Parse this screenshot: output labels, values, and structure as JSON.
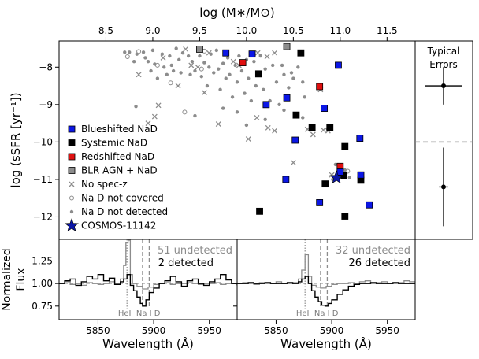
{
  "chart_data": [
    {
      "type": "scatter",
      "title": "",
      "top_axis_label": "log (M∗/M⊙)",
      "ylabel": "log (sSFR [yr⁻¹])",
      "xlim": [
        8.0,
        11.8
      ],
      "ylim": [
        -12.6,
        -7.3
      ],
      "x_ticks": [
        8.5,
        9.0,
        9.5,
        10.0,
        10.5,
        11.0,
        11.5
      ],
      "x_tick_labels": [
        "8.5",
        "9.0",
        "9.5",
        "10.0",
        "10.5",
        "11.0",
        "11.5"
      ],
      "y_ticks": [
        -8,
        -9,
        -10,
        -11,
        -12
      ],
      "y_tick_labels": [
        "−8",
        "−9",
        "−10",
        "−11",
        "−12"
      ],
      "legend": [
        {
          "label": "Blueshifted NaD",
          "marker": "square",
          "color": "#0b16e6"
        },
        {
          "label": "Systemic NaD",
          "marker": "square",
          "color": "#000000"
        },
        {
          "label": "Redshifted NaD",
          "marker": "square",
          "color": "#e01010"
        },
        {
          "label": "BLR AGN + NaD",
          "marker": "square",
          "color": "#8c8c8c"
        },
        {
          "label": "No spec-z",
          "marker": "x",
          "color": "#8c8c8c"
        },
        {
          "label": "Na D not covered",
          "marker": "open-circle",
          "color": "#8c8c8c"
        },
        {
          "label": "Na D not detected",
          "marker": "dot",
          "color": "#8c8c8c"
        },
        {
          "label": "COSMOS-11142",
          "marker": "star",
          "color": "#0b16a8"
        }
      ],
      "series": [
        {
          "name": "Blueshifted NaD",
          "points": [
            [
              9.78,
              -7.62
            ],
            [
              10.06,
              -7.65
            ],
            [
              10.98,
              -7.95
            ],
            [
              10.43,
              -8.82
            ],
            [
              10.21,
              -9.0
            ],
            [
              10.83,
              -9.1
            ],
            [
              10.52,
              -9.95
            ],
            [
              11.21,
              -9.9
            ],
            [
              10.42,
              -11.0
            ],
            [
              11.0,
              -10.8
            ],
            [
              10.78,
              -11.62
            ],
            [
              11.22,
              -10.88
            ],
            [
              11.31,
              -11.68
            ]
          ]
        },
        {
          "name": "Systemic NaD",
          "points": [
            [
              10.58,
              -7.62
            ],
            [
              10.13,
              -8.18
            ],
            [
              10.53,
              -9.28
            ],
            [
              10.7,
              -9.62
            ],
            [
              10.89,
              -9.62
            ],
            [
              11.05,
              -10.12
            ],
            [
              10.84,
              -11.12
            ],
            [
              11.04,
              -10.9
            ],
            [
              11.22,
              -11.02
            ],
            [
              11.05,
              -11.98
            ],
            [
              10.14,
              -11.85
            ]
          ]
        },
        {
          "name": "Redshifted NaD",
          "points": [
            [
              9.96,
              -7.88
            ],
            [
              10.78,
              -8.52
            ],
            [
              11.0,
              -10.65
            ]
          ]
        },
        {
          "name": "BLR AGN + NaD",
          "points": [
            [
              9.5,
              -7.52
            ],
            [
              10.43,
              -7.45
            ]
          ]
        },
        {
          "name": "No spec-z",
          "points": [
            [
              8.85,
              -8.2
            ],
            [
              9.11,
              -7.75
            ],
            [
              9.35,
              -7.52
            ],
            [
              9.41,
              -7.95
            ],
            [
              9.48,
              -8.0
            ],
            [
              9.6,
              -7.62
            ],
            [
              9.86,
              -7.85
            ],
            [
              9.92,
              -7.95
            ],
            [
              10.12,
              -7.62
            ],
            [
              10.22,
              -7.72
            ],
            [
              10.3,
              -7.62
            ],
            [
              9.27,
              -8.5
            ],
            [
              9.06,
              -9.02
            ],
            [
              9.55,
              -8.68
            ],
            [
              9.02,
              -9.32
            ],
            [
              8.95,
              -9.5
            ],
            [
              9.7,
              -9.52
            ],
            [
              10.11,
              -9.35
            ],
            [
              10.23,
              -9.62
            ],
            [
              10.3,
              -9.7
            ],
            [
              10.02,
              -9.92
            ],
            [
              10.71,
              -9.8
            ],
            [
              10.82,
              -9.68
            ],
            [
              10.79,
              -8.6
            ],
            [
              10.65,
              -9.66
            ],
            [
              10.87,
              -9.7
            ],
            [
              10.5,
              -10.55
            ],
            [
              11.02,
              -10.88
            ],
            [
              10.91,
              -10.88
            ]
          ]
        },
        {
          "name": "Na D not covered",
          "points": [
            [
              8.73,
              -7.72
            ],
            [
              8.85,
              -7.58
            ],
            [
              9.52,
              -8.05
            ],
            [
              9.05,
              -7.95
            ],
            [
              9.55,
              -7.57
            ],
            [
              9.19,
              -8.42
            ],
            [
              9.34,
              -9.2
            ],
            [
              11.08,
              -10.78
            ]
          ]
        },
        {
          "name": "Na D not detected",
          "points": [
            [
              8.7,
              -7.6
            ],
            [
              8.75,
              -7.6
            ],
            [
              8.8,
              -7.85
            ],
            [
              8.83,
              -7.65
            ],
            [
              8.9,
              -7.6
            ],
            [
              8.92,
              -7.75
            ],
            [
              8.95,
              -7.85
            ],
            [
              8.98,
              -8.1
            ],
            [
              9.0,
              -7.55
            ],
            [
              9.02,
              -7.92
            ],
            [
              9.05,
              -8.3
            ],
            [
              9.1,
              -7.65
            ],
            [
              9.12,
              -8.0
            ],
            [
              9.15,
              -8.2
            ],
            [
              9.18,
              -7.7
            ],
            [
              9.2,
              -7.95
            ],
            [
              9.22,
              -8.1
            ],
            [
              9.25,
              -7.5
            ],
            [
              9.28,
              -7.8
            ],
            [
              9.3,
              -8.15
            ],
            [
              9.32,
              -7.62
            ],
            [
              9.38,
              -7.7
            ],
            [
              9.4,
              -8.2
            ],
            [
              9.42,
              -7.85
            ],
            [
              9.45,
              -8.1
            ],
            [
              9.5,
              -7.7
            ],
            [
              9.52,
              -8.25
            ],
            [
              9.55,
              -7.88
            ],
            [
              9.58,
              -8.5
            ],
            [
              9.6,
              -8.0
            ],
            [
              9.62,
              -7.65
            ],
            [
              9.65,
              -8.15
            ],
            [
              9.68,
              -7.55
            ],
            [
              9.7,
              -8.05
            ],
            [
              9.72,
              -8.6
            ],
            [
              9.75,
              -7.9
            ],
            [
              9.78,
              -8.3
            ],
            [
              9.8,
              -7.75
            ],
            [
              9.82,
              -8.2
            ],
            [
              9.85,
              -8.8
            ],
            [
              9.88,
              -7.95
            ],
            [
              9.9,
              -8.4
            ],
            [
              9.92,
              -7.7
            ],
            [
              9.95,
              -8.1
            ],
            [
              9.98,
              -8.7
            ],
            [
              10.0,
              -7.8
            ],
            [
              10.02,
              -8.3
            ],
            [
              10.05,
              -8.9
            ],
            [
              10.08,
              -7.85
            ],
            [
              10.1,
              -8.5
            ],
            [
              10.15,
              -7.7
            ],
            [
              10.18,
              -8.6
            ],
            [
              10.2,
              -8.05
            ],
            [
              10.25,
              -8.9
            ],
            [
              10.28,
              -7.95
            ],
            [
              10.32,
              -8.4
            ],
            [
              10.35,
              -9.0
            ],
            [
              10.38,
              -7.95
            ],
            [
              10.4,
              -8.2
            ],
            [
              10.45,
              -8.55
            ],
            [
              10.48,
              -8.15
            ],
            [
              10.5,
              -8.3
            ],
            [
              10.55,
              -8.0
            ],
            [
              10.6,
              -8.4
            ],
            [
              10.62,
              -8.8
            ],
            [
              10.2,
              -9.4
            ],
            [
              9.9,
              -9.2
            ],
            [
              9.75,
              -9.1
            ],
            [
              10.4,
              -9.15
            ],
            [
              10.6,
              -9.35
            ],
            [
              10.0,
              -9.55
            ],
            [
              9.45,
              -9.3
            ],
            [
              8.82,
              -9.05
            ],
            [
              10.92,
              -11.0
            ],
            [
              10.95,
              -10.6
            ],
            [
              11.1,
              -10.95
            ],
            [
              11.05,
              -10.75
            ]
          ]
        },
        {
          "name": "COSMOS-11142",
          "points": [
            [
              10.96,
              -10.95
            ]
          ]
        }
      ]
    },
    {
      "type": "errorbar",
      "title": "Typical Errors",
      "points": [
        {
          "y": -8.5,
          "xerr": 0.2,
          "yerr": 0.5
        },
        {
          "y": -11.2,
          "xerr": 0.05,
          "yerr": 1.05
        }
      ],
      "divider_y": -10.0
    },
    {
      "type": "line",
      "title": "",
      "xlabel": "Wavelength (Å)",
      "ylabel": "Normalized Flux",
      "xlim": [
        5815,
        5975
      ],
      "ylim": [
        0.6,
        1.49
      ],
      "x_ticks": [
        5850,
        5900,
        5950
      ],
      "y_ticks": [
        0.75,
        1.0,
        1.25
      ],
      "y_tick_labels": [
        "0.75",
        "1.00",
        "1.25"
      ],
      "annotations": [
        "51 undetected",
        "2 detected"
      ],
      "line_labels": [
        "HeI",
        "Na I D"
      ],
      "line_positions": [
        5876,
        5890,
        5896
      ],
      "series": [
        {
          "name": "undetected",
          "color": "#8c8c8c",
          "x": [
            5815,
            5820,
            5825,
            5830,
            5835,
            5840,
            5845,
            5850,
            5855,
            5860,
            5865,
            5870,
            5873,
            5875,
            5877,
            5879,
            5881,
            5885,
            5890,
            5895,
            5900,
            5905,
            5910,
            5915,
            5920,
            5925,
            5930,
            5935,
            5940,
            5945,
            5950,
            5955,
            5960,
            5965,
            5970,
            5975
          ],
          "values": [
            1.0,
            1.02,
            0.99,
            1.0,
            0.98,
            1.01,
            1.0,
            0.99,
            1.0,
            1.02,
            1.0,
            1.05,
            1.2,
            1.45,
            1.48,
            1.1,
            1.0,
            0.97,
            0.94,
            0.96,
            0.99,
            1.0,
            1.01,
            0.99,
            1.0,
            1.0,
            1.01,
            1.0,
            0.99,
            1.0,
            1.0,
            1.01,
            0.99,
            1.0,
            1.0,
            1.0
          ]
        },
        {
          "name": "detected",
          "color": "#000000",
          "x": [
            5815,
            5820,
            5825,
            5830,
            5835,
            5840,
            5845,
            5850,
            5855,
            5860,
            5865,
            5870,
            5873,
            5876,
            5879,
            5882,
            5885,
            5888,
            5890,
            5893,
            5896,
            5900,
            5905,
            5910,
            5915,
            5920,
            5925,
            5930,
            5935,
            5940,
            5945,
            5950,
            5955,
            5960,
            5965,
            5970,
            5975
          ],
          "values": [
            1.0,
            1.03,
            1.05,
            0.98,
            1.02,
            1.08,
            1.05,
            1.1,
            1.03,
            1.06,
            0.99,
            1.02,
            1.05,
            1.1,
            0.98,
            0.92,
            0.85,
            0.78,
            0.75,
            0.82,
            0.9,
            0.95,
            1.0,
            1.03,
            1.08,
            1.02,
            0.97,
            1.03,
            1.05,
            1.0,
            0.98,
            1.02,
            1.05,
            1.1,
            1.04,
            1.0,
            0.98
          ]
        }
      ]
    },
    {
      "type": "line",
      "title": "",
      "xlabel": "Wavelength (Å)",
      "ylabel": "",
      "xlim": [
        5815,
        5975
      ],
      "ylim": [
        0.6,
        1.49
      ],
      "x_ticks": [
        5850,
        5900,
        5950
      ],
      "y_ticks": [
        0.75,
        1.0,
        1.25
      ],
      "annotations": [
        "32 undetected",
        "26 detected"
      ],
      "line_labels": [
        "HeI",
        "Na I D"
      ],
      "line_positions": [
        5876,
        5890,
        5896
      ],
      "series": [
        {
          "name": "undetected",
          "color": "#8c8c8c",
          "x": [
            5815,
            5820,
            5825,
            5830,
            5835,
            5840,
            5845,
            5850,
            5855,
            5860,
            5865,
            5870,
            5873,
            5876,
            5879,
            5882,
            5886,
            5890,
            5895,
            5900,
            5905,
            5910,
            5915,
            5920,
            5925,
            5930,
            5935,
            5940,
            5945,
            5950,
            5955,
            5960,
            5965,
            5970,
            5975
          ],
          "values": [
            1.0,
            1.01,
            1.0,
            0.99,
            1.01,
            1.0,
            1.0,
            1.02,
            1.0,
            1.0,
            1.01,
            1.05,
            1.15,
            1.32,
            1.08,
            0.98,
            0.96,
            0.95,
            0.97,
            0.99,
            1.0,
            1.0,
            1.01,
            1.0,
            1.02,
            1.03,
            1.0,
            1.01,
            1.02,
            1.0,
            1.0,
            1.01,
            1.03,
            1.02,
            1.0
          ]
        },
        {
          "name": "detected",
          "color": "#000000",
          "x": [
            5815,
            5820,
            5825,
            5830,
            5835,
            5840,
            5845,
            5850,
            5855,
            5860,
            5865,
            5870,
            5873,
            5876,
            5879,
            5882,
            5885,
            5888,
            5891,
            5894,
            5897,
            5900,
            5905,
            5910,
            5915,
            5920,
            5925,
            5930,
            5935,
            5940,
            5945,
            5950,
            5955,
            5960,
            5965,
            5970,
            5975
          ],
          "values": [
            1.0,
            1.0,
            1.01,
            1.0,
            1.0,
            1.01,
            1.0,
            1.0,
            1.0,
            1.01,
            1.0,
            1.02,
            1.05,
            1.08,
            1.0,
            0.92,
            0.85,
            0.8,
            0.76,
            0.75,
            0.78,
            0.82,
            0.88,
            0.93,
            0.97,
            0.99,
            1.0,
            1.0,
            1.01,
            1.0,
            1.0,
            1.0,
            1.01,
            1.0,
            1.0,
            1.0,
            1.0
          ]
        }
      ]
    }
  ]
}
